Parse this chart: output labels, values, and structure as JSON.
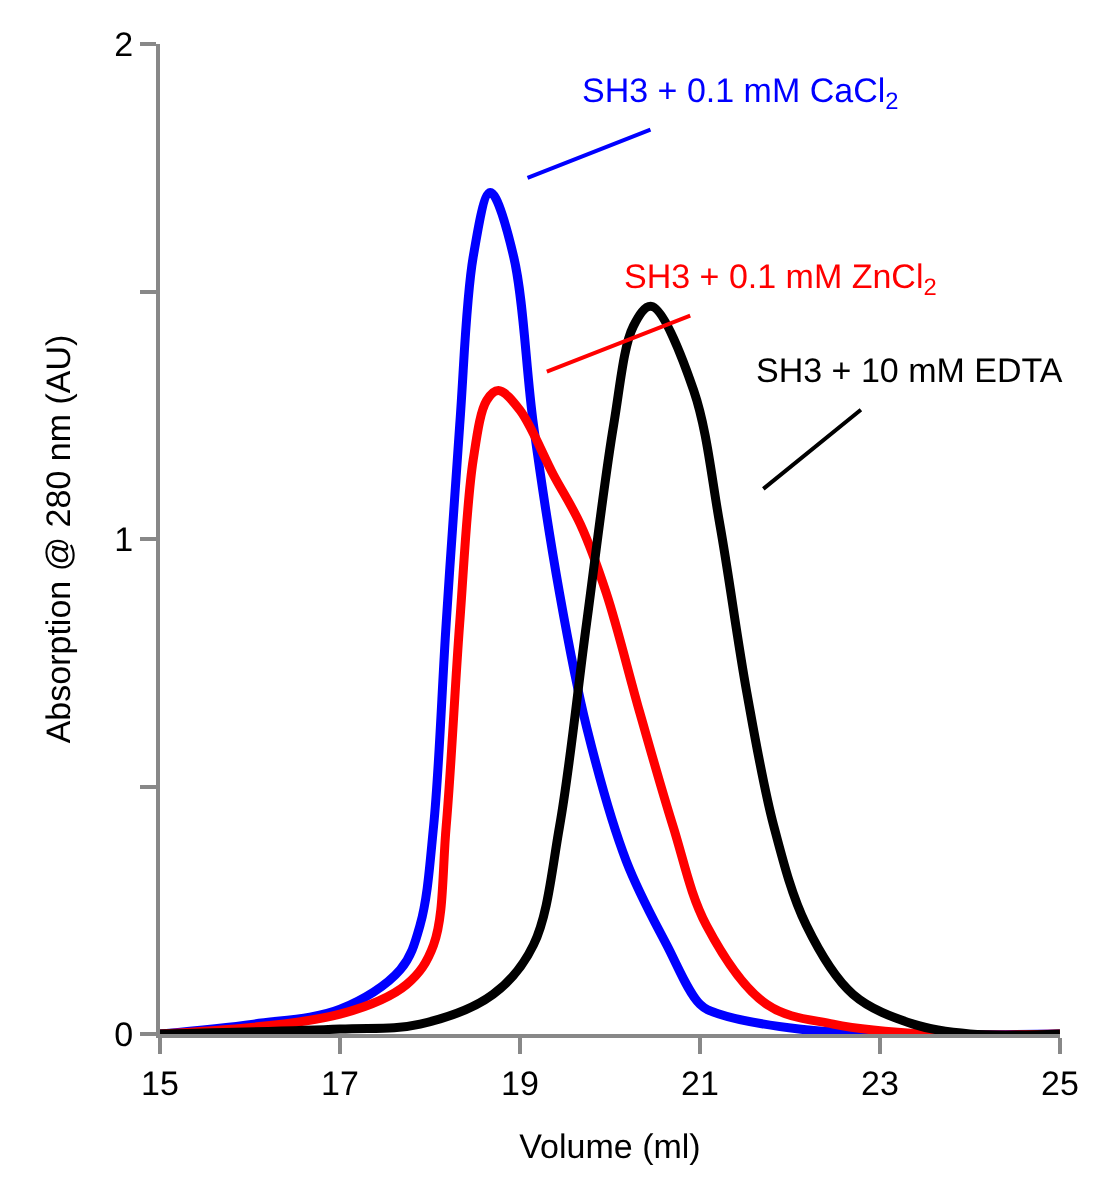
{
  "chart_data": {
    "type": "line",
    "xlabel": "Volume (ml)",
    "ylabel": "Absorption @ 280 nm (AU)",
    "xlim": [
      15,
      25
    ],
    "xticks": [
      15,
      17,
      19,
      21,
      23,
      25
    ],
    "ylim": [
      0,
      2
    ],
    "yticks": [
      0,
      {
        "value": 0.5,
        "label": null
      },
      1,
      {
        "value": 1.5,
        "label": null
      },
      2
    ],
    "grid": false,
    "legend": false,
    "marker": "none",
    "line_style": "solid",
    "series": [
      {
        "name": "SH3 + 0.1 mM CaCl$_{2}$",
        "color": "#0000ff",
        "x": [
          15,
          16.04,
          17.0,
          17.67,
          17.89,
          18.04,
          18.18,
          18.33,
          18.48,
          18.67,
          18.93,
          19.15,
          19.44,
          19.74,
          20.18,
          20.63,
          21.0,
          21.22,
          22.1,
          23,
          25
        ],
        "values": [
          0,
          0.02,
          0.05,
          0.13,
          0.22,
          0.42,
          0.83,
          1.23,
          1.57,
          1.7,
          1.57,
          1.23,
          0.89,
          0.62,
          0.35,
          0.18,
          0.06,
          0.04,
          0.01,
          0,
          0
        ]
      },
      {
        "name": "SH3 + 0.1 mM ZnCl$_{2}$",
        "color": "#ff0000",
        "x": [
          15,
          17.0,
          17.74,
          18.04,
          18.18,
          18.33,
          18.48,
          18.63,
          18.76,
          19.0,
          19.37,
          19.67,
          19.96,
          20.33,
          20.7,
          21.07,
          21.74,
          22.48,
          23.5,
          25
        ],
        "values": [
          0,
          0.04,
          0.1,
          0.18,
          0.42,
          0.83,
          1.16,
          1.28,
          1.3,
          1.26,
          1.13,
          1.03,
          0.89,
          0.65,
          0.42,
          0.22,
          0.06,
          0.02,
          0,
          0
        ]
      },
      {
        "name": "SH3 + 10 mM EDTA",
        "color": "#000000",
        "x": [
          15,
          17.0,
          17.89,
          18.7,
          19.15,
          19.44,
          19.74,
          20.04,
          20.26,
          20.46,
          20.93,
          21.22,
          21.52,
          21.82,
          22.18,
          22.7,
          23.37,
          24.0,
          25
        ],
        "values": [
          0,
          0.01,
          0.02,
          0.08,
          0.18,
          0.42,
          0.83,
          1.23,
          1.43,
          1.47,
          1.3,
          1.03,
          0.69,
          0.42,
          0.22,
          0.08,
          0.02,
          0,
          0
        ]
      }
    ]
  }
}
